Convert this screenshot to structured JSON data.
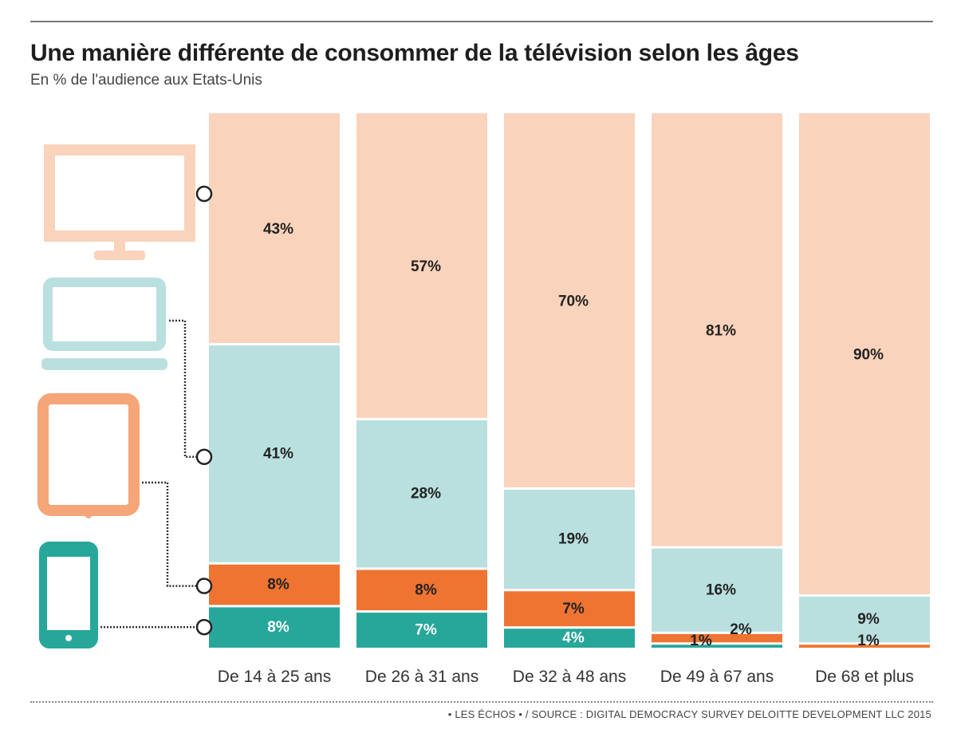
{
  "header": {
    "title": "Une manière différente de consommer de la télévision selon les âges",
    "subtitle": "En % de l'audience aux Etats-Unis"
  },
  "footer": {
    "source": "• LES ÉCHOS • / SOURCE : DIGITAL DEMOCRACY SURVEY DELOITTE DEVELOPMENT LLC 2015"
  },
  "colors": {
    "tv": "#f9d3bb",
    "laptop": "#b9e0df",
    "tablet": "#ef7431",
    "smartphone": "#26a79a",
    "connector": "#333333"
  },
  "icons": [
    "tv-icon",
    "laptop-icon",
    "tablet-icon",
    "smartphone-icon"
  ],
  "chart_data": {
    "type": "bar",
    "stacked": true,
    "normalized": true,
    "title": "Une manière différente de consommer de la télévision selon les âges",
    "subtitle": "En % de l'audience aux Etats-Unis",
    "categories": [
      "De 14 à 25 ans",
      "De 26 à 31 ans",
      "De 32 à 48 ans",
      "De 49 à 67 ans",
      "De 68 et plus"
    ],
    "series": [
      {
        "key": "smartphone",
        "values": [
          8,
          7,
          4,
          1,
          0
        ]
      },
      {
        "key": "tablet",
        "values": [
          8,
          8,
          7,
          2,
          1
        ]
      },
      {
        "key": "laptop",
        "values": [
          41,
          28,
          19,
          16,
          9
        ]
      },
      {
        "key": "tv",
        "values": [
          43,
          57,
          70,
          81,
          90
        ]
      }
    ],
    "value_labels": [
      [
        "8%",
        "7%",
        "4%",
        "1%",
        ""
      ],
      [
        "8%",
        "8%",
        "7%",
        "2%",
        "1%"
      ],
      [
        "41%",
        "28%",
        "19%",
        "16%",
        "9%"
      ],
      [
        "43%",
        "57%",
        "70%",
        "81%",
        "90%"
      ]
    ],
    "xlabel": "",
    "ylabel": "",
    "ylim": [
      0,
      100
    ],
    "grid": false,
    "legend": "left icons"
  }
}
